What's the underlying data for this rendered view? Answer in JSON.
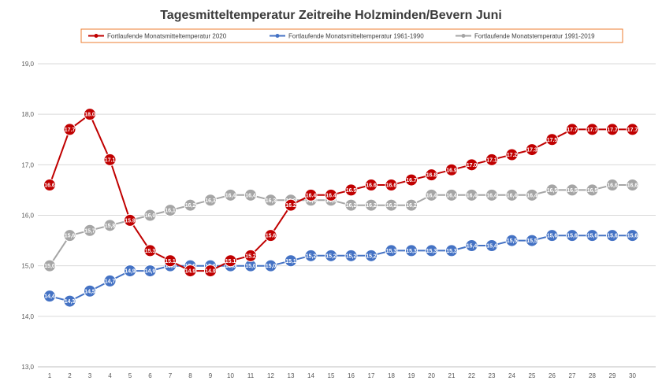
{
  "chart_data": {
    "type": "line",
    "title": "Tagesmitteltemperatur Zeitreihe Holzminden/Bevern Juni",
    "xlabel": "",
    "ylabel": "",
    "ylim": [
      13.0,
      19.0
    ],
    "yticks": [
      "13,0",
      "14,0",
      "15,0",
      "16,0",
      "17,0",
      "18,0",
      "19,0"
    ],
    "x": [
      "1",
      "2",
      "3",
      "4",
      "5",
      "6",
      "7",
      "8",
      "9",
      "10",
      "11",
      "12",
      "13",
      "14",
      "15",
      "16",
      "17",
      "18",
      "19",
      "20",
      "21",
      "22",
      "23",
      "24",
      "25",
      "26",
      "27",
      "28",
      "29",
      "30"
    ],
    "grid": true,
    "legend_position": "top",
    "series": [
      {
        "name": "Fortlaufende Monatsmitteltemperatur 2020",
        "color": "#c00000",
        "values": [
          16.6,
          17.7,
          18.0,
          17.1,
          15.9,
          15.3,
          15.1,
          14.9,
          14.9,
          15.1,
          15.2,
          15.6,
          16.2,
          16.4,
          16.4,
          16.5,
          16.6,
          16.6,
          16.7,
          16.8,
          16.9,
          17.0,
          17.1,
          17.2,
          17.3,
          17.5,
          17.7,
          17.7,
          17.7,
          17.7
        ],
        "labels": [
          "16.6",
          "17.7",
          "18.0",
          "17.1",
          "15.9",
          "15.3",
          "15.1",
          "14.9",
          "14.9",
          "15.1",
          "15.2",
          "15.6",
          "16.2",
          "16.4",
          "16.4",
          "16.5",
          "16.6",
          "16.6",
          "16.7",
          "16.8",
          "16.9",
          "17.0",
          "17.1",
          "17.2",
          "17.3",
          "17.5",
          "17.7",
          "17.7",
          "17.7",
          "17.7"
        ]
      },
      {
        "name": "Fortlaufende Monatsmitteltemperatur 1961-1990",
        "color": "#4472c4",
        "values": [
          14.4,
          14.3,
          14.5,
          14.7,
          14.9,
          14.9,
          15.0,
          15.0,
          15.0,
          15.0,
          15.0,
          15.0,
          15.1,
          15.2,
          15.2,
          15.2,
          15.2,
          15.3,
          15.3,
          15.3,
          15.3,
          15.4,
          15.4,
          15.5,
          15.5,
          15.6,
          15.6,
          15.6,
          15.6,
          15.6
        ],
        "labels": [
          "14,4",
          "14,3",
          "14,5",
          "14,7",
          "14,9",
          "14,9",
          "15,0",
          "15,0",
          "15,0",
          "15,0",
          "15,0",
          "15,0",
          "15,1",
          "15,2",
          "15,2",
          "15,2",
          "15,2",
          "15,3",
          "15,3",
          "15,3",
          "15,3",
          "15,4",
          "15,4",
          "15,5",
          "15,5",
          "15,6",
          "15,6",
          "15,6",
          "15,6",
          "15,6"
        ]
      },
      {
        "name": "Fortlaufende Monatstemperatur 1991-2019",
        "color": "#a5a5a5",
        "values": [
          15.0,
          15.6,
          15.7,
          15.8,
          15.9,
          16.0,
          16.1,
          16.2,
          16.3,
          16.4,
          16.4,
          16.3,
          16.3,
          16.3,
          16.3,
          16.2,
          16.2,
          16.2,
          16.2,
          16.4,
          16.4,
          16.4,
          16.4,
          16.4,
          16.4,
          16.5,
          16.5,
          16.5,
          16.6,
          16.6
        ],
        "labels": [
          "15,0",
          "15,6",
          "15,7",
          "15,8",
          "15,9",
          "16,0",
          "16,1",
          "16,2",
          "16,3",
          "16,4",
          "16,4",
          "16,3",
          "16,3",
          "16,3",
          "16,3",
          "16,2",
          "16,2",
          "16,2",
          "16,2",
          "16,4",
          "16,4",
          "16,4",
          "16,4",
          "16,4",
          "16,4",
          "16,5",
          "16,5",
          "16,5",
          "16,6",
          "16,6"
        ]
      }
    ]
  },
  "legend_labels": {
    "s0": "Fortlaufende Monatsmitteltemperatur 2020",
    "s1": "Fortlaufende Monatsmitteltemperatur 1961-1990",
    "s2": "Fortlaufende Monatstemperatur 1991-2019"
  }
}
